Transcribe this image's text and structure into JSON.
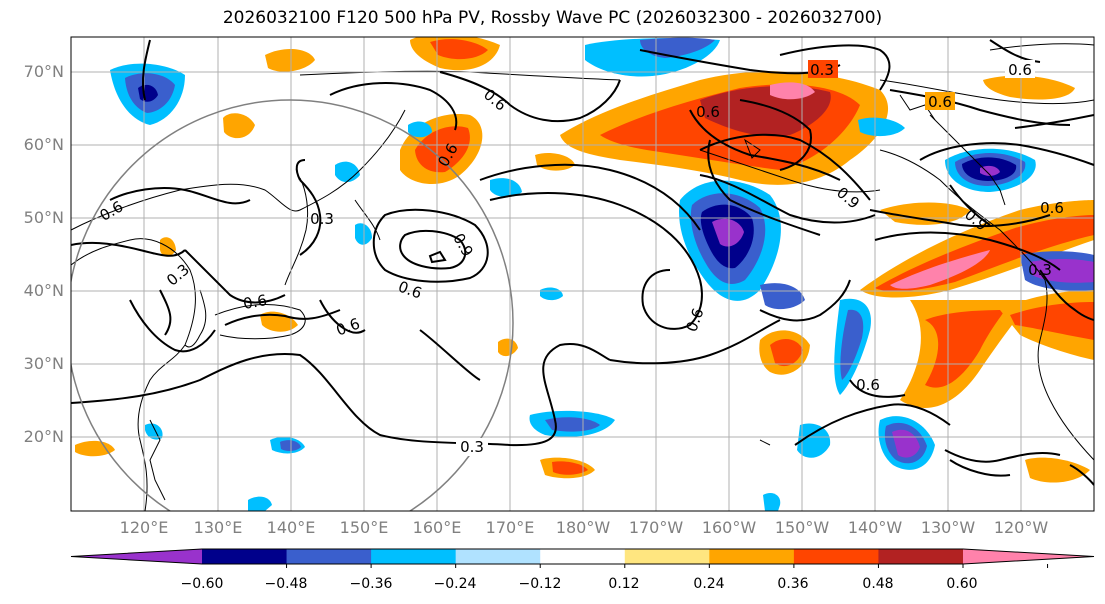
{
  "title": "2026032100 F120 500 hPa PV, Rossby Wave PC (2026032300 - 2026032700)",
  "map": {
    "projection": "PlateCarree",
    "lon_range_deg_east": [
      110,
      250
    ],
    "lat_range_deg": [
      10,
      75
    ]
  },
  "lat_labels": [
    "70°N",
    "60°N",
    "50°N",
    "40°N",
    "30°N",
    "20°N"
  ],
  "lon_labels": [
    "120°E",
    "130°E",
    "140°E",
    "150°E",
    "160°E",
    "170°E",
    "180°W",
    "170°W",
    "160°W",
    "150°W",
    "140°W",
    "130°W",
    "120°W"
  ],
  "colorbar": {
    "ticks": [
      "−0.60",
      "−0.48",
      "−0.36",
      "−0.24",
      "−0.12",
      "0.12",
      "0.24",
      "0.36",
      "0.48",
      "0.60"
    ],
    "colors": [
      "#9932cc",
      "#00008b",
      "#3a5fcd",
      "#00bfff",
      "#b0e2ff",
      "#ffffff",
      "#ffe680",
      "#ffa500",
      "#ff4500",
      "#b22222",
      "#ff82ab"
    ]
  },
  "contour_labels": [
    "0.3",
    "0.6",
    "0.6",
    "0.6",
    "0.6",
    "0.9",
    "0.6",
    "0.9",
    "0.6",
    "0.3",
    "0.6",
    "0.9",
    "0.3",
    "0.6",
    "0.6",
    "0.6",
    "0.3",
    "0.6",
    "0.3",
    "0.6"
  ]
}
